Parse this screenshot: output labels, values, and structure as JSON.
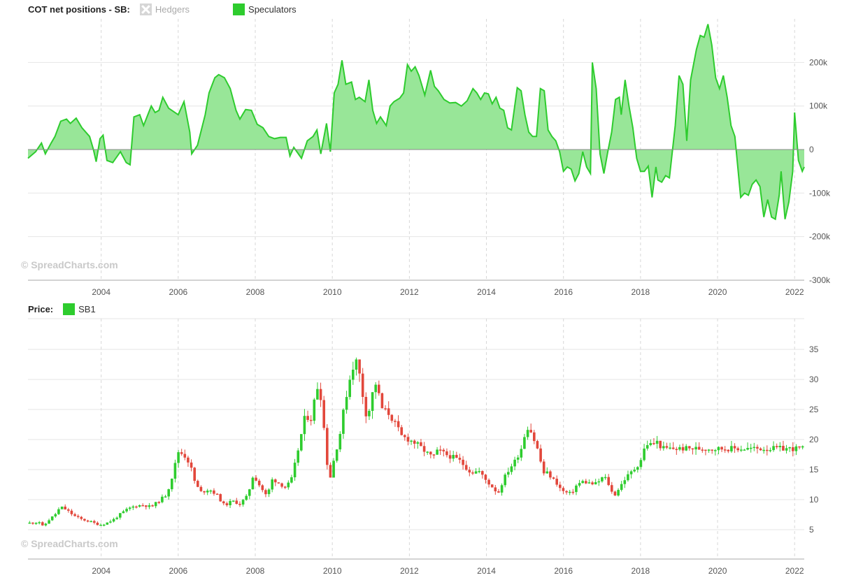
{
  "panel1": {
    "title": "COT net positions - SB:",
    "legend": [
      {
        "label": "Hedgers",
        "visible": false
      },
      {
        "label": "Speculators",
        "visible": true,
        "color": "#2ecc2e"
      }
    ],
    "watermark": "© SpreadCharts.com"
  },
  "panel2": {
    "title": "Price:",
    "legend": [
      {
        "label": "SB1",
        "color": "#2ecc2e"
      }
    ],
    "watermark": "© SpreadCharts.com"
  },
  "chart_data": [
    {
      "type": "area",
      "title": "COT net positions - SB:",
      "series": [
        {
          "name": "Speculators",
          "color": "#2ecc2e",
          "fill": "#98e698"
        }
      ],
      "x_ticks": [
        "2004",
        "2006",
        "2008",
        "2010",
        "2012",
        "2014",
        "2016",
        "2018",
        "2020",
        "2022"
      ],
      "y_ticks": [
        "200k",
        "100k",
        "0",
        "-100k",
        "-200k",
        "-300k"
      ],
      "y_tick_values": [
        200000,
        100000,
        0,
        -100000,
        -200000,
        -300000
      ],
      "xlim": [
        2002.1,
        2022.25
      ],
      "ylim": [
        -300000,
        300000
      ],
      "points": [
        [
          2002.1,
          -20000
        ],
        [
          2002.3,
          -5000
        ],
        [
          2002.45,
          15000
        ],
        [
          2002.55,
          -10000
        ],
        [
          2002.7,
          15000
        ],
        [
          2002.8,
          30000
        ],
        [
          2002.95,
          65000
        ],
        [
          2003.1,
          70000
        ],
        [
          2003.2,
          60000
        ],
        [
          2003.35,
          72000
        ],
        [
          2003.5,
          50000
        ],
        [
          2003.7,
          30000
        ],
        [
          2003.8,
          0
        ],
        [
          2003.87,
          -28000
        ],
        [
          2003.97,
          25000
        ],
        [
          2004.05,
          33000
        ],
        [
          2004.15,
          -25000
        ],
        [
          2004.3,
          -30000
        ],
        [
          2004.5,
          -5000
        ],
        [
          2004.65,
          -30000
        ],
        [
          2004.75,
          -35000
        ],
        [
          2004.85,
          75000
        ],
        [
          2005.0,
          80000
        ],
        [
          2005.1,
          55000
        ],
        [
          2005.3,
          100000
        ],
        [
          2005.4,
          85000
        ],
        [
          2005.5,
          90000
        ],
        [
          2005.6,
          120000
        ],
        [
          2005.75,
          95000
        ],
        [
          2006.0,
          80000
        ],
        [
          2006.15,
          110000
        ],
        [
          2006.3,
          40000
        ],
        [
          2006.35,
          -10000
        ],
        [
          2006.5,
          10000
        ],
        [
          2006.7,
          80000
        ],
        [
          2006.8,
          130000
        ],
        [
          2006.95,
          165000
        ],
        [
          2007.05,
          172000
        ],
        [
          2007.2,
          165000
        ],
        [
          2007.35,
          140000
        ],
        [
          2007.5,
          90000
        ],
        [
          2007.6,
          70000
        ],
        [
          2007.75,
          92000
        ],
        [
          2007.9,
          90000
        ],
        [
          2008.05,
          58000
        ],
        [
          2008.2,
          50000
        ],
        [
          2008.35,
          30000
        ],
        [
          2008.5,
          25000
        ],
        [
          2008.65,
          28000
        ],
        [
          2008.8,
          28000
        ],
        [
          2008.9,
          -15000
        ],
        [
          2009.0,
          5000
        ],
        [
          2009.2,
          -20000
        ],
        [
          2009.35,
          20000
        ],
        [
          2009.5,
          30000
        ],
        [
          2009.6,
          45000
        ],
        [
          2009.7,
          -10000
        ],
        [
          2009.85,
          60000
        ],
        [
          2009.95,
          -5000
        ],
        [
          2010.05,
          130000
        ],
        [
          2010.15,
          150000
        ],
        [
          2010.25,
          205000
        ],
        [
          2010.35,
          150000
        ],
        [
          2010.5,
          155000
        ],
        [
          2010.6,
          115000
        ],
        [
          2010.7,
          120000
        ],
        [
          2010.85,
          110000
        ],
        [
          2010.95,
          160000
        ],
        [
          2011.05,
          90000
        ],
        [
          2011.15,
          60000
        ],
        [
          2011.25,
          75000
        ],
        [
          2011.4,
          55000
        ],
        [
          2011.5,
          100000
        ],
        [
          2011.6,
          110000
        ],
        [
          2011.75,
          118000
        ],
        [
          2011.85,
          130000
        ],
        [
          2011.95,
          195000
        ],
        [
          2012.05,
          180000
        ],
        [
          2012.15,
          190000
        ],
        [
          2012.25,
          170000
        ],
        [
          2012.4,
          125000
        ],
        [
          2012.55,
          182000
        ],
        [
          2012.65,
          145000
        ],
        [
          2012.75,
          135000
        ],
        [
          2012.9,
          115000
        ],
        [
          2013.05,
          107000
        ],
        [
          2013.2,
          108000
        ],
        [
          2013.35,
          100000
        ],
        [
          2013.5,
          112000
        ],
        [
          2013.65,
          140000
        ],
        [
          2013.75,
          130000
        ],
        [
          2013.85,
          115000
        ],
        [
          2013.95,
          130000
        ],
        [
          2014.05,
          128000
        ],
        [
          2014.15,
          105000
        ],
        [
          2014.25,
          120000
        ],
        [
          2014.35,
          95000
        ],
        [
          2014.45,
          90000
        ],
        [
          2014.55,
          50000
        ],
        [
          2014.65,
          45000
        ],
        [
          2014.8,
          142000
        ],
        [
          2014.9,
          135000
        ],
        [
          2015.0,
          80000
        ],
        [
          2015.1,
          40000
        ],
        [
          2015.2,
          30000
        ],
        [
          2015.3,
          30000
        ],
        [
          2015.4,
          140000
        ],
        [
          2015.5,
          135000
        ],
        [
          2015.6,
          45000
        ],
        [
          2015.7,
          30000
        ],
        [
          2015.8,
          20000
        ],
        [
          2015.9,
          -5000
        ],
        [
          2016.0,
          -50000
        ],
        [
          2016.1,
          -40000
        ],
        [
          2016.2,
          -45000
        ],
        [
          2016.3,
          -72000
        ],
        [
          2016.4,
          -55000
        ],
        [
          2016.5,
          -5000
        ],
        [
          2016.6,
          -40000
        ],
        [
          2016.7,
          -55000
        ],
        [
          2016.75,
          200000
        ],
        [
          2016.85,
          140000
        ],
        [
          2016.95,
          -10000
        ],
        [
          2017.05,
          -55000
        ],
        [
          2017.15,
          -5000
        ],
        [
          2017.25,
          40000
        ],
        [
          2017.35,
          115000
        ],
        [
          2017.45,
          120000
        ],
        [
          2017.5,
          80000
        ],
        [
          2017.6,
          160000
        ],
        [
          2017.7,
          100000
        ],
        [
          2017.8,
          50000
        ],
        [
          2017.9,
          -20000
        ],
        [
          2018.0,
          -50000
        ],
        [
          2018.1,
          -50000
        ],
        [
          2018.2,
          -38000
        ],
        [
          2018.3,
          -110000
        ],
        [
          2018.4,
          -40000
        ],
        [
          2018.45,
          -70000
        ],
        [
          2018.55,
          -75000
        ],
        [
          2018.65,
          -60000
        ],
        [
          2018.75,
          -65000
        ],
        [
          2018.9,
          55000
        ],
        [
          2019.0,
          170000
        ],
        [
          2019.1,
          150000
        ],
        [
          2019.2,
          20000
        ],
        [
          2019.3,
          160000
        ],
        [
          2019.45,
          230000
        ],
        [
          2019.55,
          262000
        ],
        [
          2019.65,
          258000
        ],
        [
          2019.75,
          288000
        ],
        [
          2019.85,
          240000
        ],
        [
          2019.95,
          165000
        ],
        [
          2020.05,
          140000
        ],
        [
          2020.15,
          170000
        ],
        [
          2020.25,
          120000
        ],
        [
          2020.35,
          55000
        ],
        [
          2020.45,
          30000
        ],
        [
          2020.6,
          -110000
        ],
        [
          2020.7,
          -100000
        ],
        [
          2020.8,
          -105000
        ],
        [
          2020.9,
          -80000
        ],
        [
          2021.0,
          -70000
        ],
        [
          2021.1,
          -85000
        ],
        [
          2021.2,
          -155000
        ],
        [
          2021.3,
          -115000
        ],
        [
          2021.4,
          -155000
        ],
        [
          2021.5,
          -160000
        ],
        [
          2021.6,
          -105000
        ],
        [
          2021.65,
          -50000
        ],
        [
          2021.75,
          -160000
        ],
        [
          2021.85,
          -120000
        ],
        [
          2021.95,
          -50000
        ],
        [
          2022.0,
          85000
        ],
        [
          2022.1,
          -25000
        ],
        [
          2022.2,
          -50000
        ],
        [
          2022.25,
          -40000
        ]
      ]
    },
    {
      "type": "candlestick",
      "title": "Price:",
      "series": [
        {
          "name": "SB1",
          "up_color": "#2ecc2e",
          "down_color": "#e2473b"
        }
      ],
      "x_ticks": [
        "2004",
        "2006",
        "2008",
        "2010",
        "2012",
        "2014",
        "2016",
        "2018",
        "2020",
        "2022"
      ],
      "y_ticks": [
        "35",
        "30",
        "25",
        "20",
        "15",
        "10",
        "5"
      ],
      "xlim": [
        2002.1,
        2022.25
      ],
      "ylim": [
        0,
        40
      ],
      "path": [
        [
          2002.1,
          6.1
        ],
        [
          2002.4,
          6.3
        ],
        [
          2002.5,
          5.4
        ],
        [
          2002.6,
          6.4
        ],
        [
          2002.8,
          7.5
        ],
        [
          2002.95,
          8.8
        ],
        [
          2003.1,
          8.3
        ],
        [
          2003.3,
          7.3
        ],
        [
          2003.5,
          6.7
        ],
        [
          2003.7,
          6.4
        ],
        [
          2003.95,
          5.8
        ],
        [
          2004.1,
          6.0
        ],
        [
          2004.3,
          6.6
        ],
        [
          2004.5,
          7.6
        ],
        [
          2004.7,
          8.5
        ],
        [
          2004.9,
          9.0
        ],
        [
          2005.1,
          9.1
        ],
        [
          2005.3,
          8.8
        ],
        [
          2005.5,
          9.8
        ],
        [
          2005.7,
          10.9
        ],
        [
          2005.85,
          14.0
        ],
        [
          2006.0,
          18.0
        ],
        [
          2006.15,
          17.5
        ],
        [
          2006.3,
          16.0
        ],
        [
          2006.45,
          12.5
        ],
        [
          2006.6,
          11.2
        ],
        [
          2006.8,
          11.8
        ],
        [
          2007.0,
          10.8
        ],
        [
          2007.2,
          9.0
        ],
        [
          2007.4,
          9.8
        ],
        [
          2007.6,
          9.3
        ],
        [
          2007.8,
          10.6
        ],
        [
          2007.95,
          14.2
        ],
        [
          2008.1,
          12.5
        ],
        [
          2008.3,
          10.5
        ],
        [
          2008.45,
          13.5
        ],
        [
          2008.6,
          12.8
        ],
        [
          2008.8,
          12.0
        ],
        [
          2008.95,
          13.5
        ],
        [
          2009.1,
          18.0
        ],
        [
          2009.3,
          24.0
        ],
        [
          2009.45,
          23.5
        ],
        [
          2009.55,
          27.0
        ],
        [
          2009.65,
          29.8
        ],
        [
          2009.75,
          24.5
        ],
        [
          2009.85,
          16.5
        ],
        [
          2009.95,
          13.8
        ],
        [
          2010.05,
          17.0
        ],
        [
          2010.2,
          21.0
        ],
        [
          2010.35,
          27.0
        ],
        [
          2010.5,
          31.5
        ],
        [
          2010.6,
          33.5
        ],
        [
          2010.7,
          31.0
        ],
        [
          2010.8,
          27.0
        ],
        [
          2010.9,
          23.5
        ],
        [
          2011.0,
          26.0
        ],
        [
          2011.1,
          30.0
        ],
        [
          2011.2,
          27.5
        ],
        [
          2011.3,
          25.0
        ],
        [
          2011.45,
          24.5
        ],
        [
          2011.6,
          23.0
        ],
        [
          2011.8,
          20.5
        ],
        [
          2012.0,
          20.0
        ],
        [
          2012.2,
          19.2
        ],
        [
          2012.45,
          17.8
        ],
        [
          2012.6,
          17.0
        ],
        [
          2012.75,
          18.2
        ],
        [
          2012.95,
          17.5
        ],
        [
          2013.15,
          17.0
        ],
        [
          2013.3,
          16.5
        ],
        [
          2013.45,
          15.5
        ],
        [
          2013.6,
          14.5
        ],
        [
          2013.8,
          14.8
        ],
        [
          2013.95,
          13.5
        ],
        [
          2014.05,
          12.8
        ],
        [
          2014.2,
          11.8
        ],
        [
          2014.3,
          11.0
        ],
        [
          2014.45,
          13.5
        ],
        [
          2014.6,
          15.2
        ],
        [
          2014.75,
          16.5
        ],
        [
          2014.9,
          18.5
        ],
        [
          2015.0,
          21.0
        ],
        [
          2015.1,
          22.5
        ],
        [
          2015.2,
          20.5
        ],
        [
          2015.3,
          19.0
        ],
        [
          2015.4,
          16.5
        ],
        [
          2015.5,
          14.2
        ],
        [
          2015.6,
          14.5
        ],
        [
          2015.7,
          13.5
        ],
        [
          2015.8,
          13.0
        ],
        [
          2015.95,
          11.5
        ],
        [
          2016.05,
          11.2
        ],
        [
          2016.2,
          11.0
        ],
        [
          2016.35,
          12.5
        ],
        [
          2016.5,
          13.0
        ],
        [
          2016.65,
          12.8
        ],
        [
          2016.8,
          12.5
        ],
        [
          2016.95,
          13.2
        ],
        [
          2017.05,
          14.0
        ],
        [
          2017.2,
          12.2
        ],
        [
          2017.3,
          10.5
        ],
        [
          2017.45,
          12.0
        ],
        [
          2017.6,
          13.5
        ],
        [
          2017.75,
          14.5
        ],
        [
          2017.9,
          15.5
        ],
        [
          2018.0,
          16.5
        ],
        [
          2018.1,
          18.5
        ],
        [
          2018.2,
          19.5
        ],
        [
          2018.3,
          19.0
        ],
        [
          2018.4,
          19.8
        ],
        [
          2018.5,
          19.0
        ],
        [
          2018.6,
          18.5
        ]
      ]
    }
  ]
}
